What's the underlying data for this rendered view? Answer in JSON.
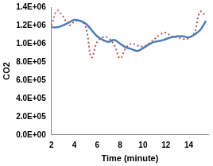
{
  "chart_data": {
    "type": "line",
    "x_label": "Time (minute)",
    "y_label": "CO2",
    "x": [
      2,
      2.5,
      3,
      3.5,
      4,
      4.5,
      5,
      5.5,
      6,
      6.5,
      7,
      7.5,
      8,
      8.5,
      9,
      9.5,
      10,
      10.5,
      11,
      11.5,
      12,
      12.5,
      13,
      13.5,
      14,
      14.5,
      15,
      15.5
    ],
    "series": [
      {
        "color": "#4a7ebb",
        "line_style": "solid",
        "values": [
          1180000,
          1180000,
          1200000,
          1230000,
          1260000,
          1250000,
          1220000,
          1150000,
          1080000,
          1040000,
          1020000,
          1040000,
          1000000,
          960000,
          940000,
          920000,
          950000,
          990000,
          1020000,
          1030000,
          1050000,
          1070000,
          1080000,
          1080000,
          1070000,
          1100000,
          1150000,
          1250000
        ]
      },
      {
        "color": "#c0504d",
        "line_style": "dotted",
        "values": [
          1200000,
          1360000,
          1300000,
          1200000,
          1240000,
          1250000,
          1180000,
          850000,
          1020000,
          1070000,
          1060000,
          980000,
          840000,
          950000,
          1000000,
          980000,
          970000,
          1000000,
          1050000,
          1100000,
          1120000,
          1080000,
          1070000,
          1050000,
          1060000,
          1120000,
          1350000,
          1300000
        ]
      }
    ],
    "xlim": [
      2,
      15.7
    ],
    "xticks": [
      2,
      4,
      6,
      8,
      10,
      12,
      14
    ],
    "ylim": [
      0,
      1400000
    ],
    "yticks": [
      {
        "value": 0,
        "label": "0.0E+00"
      },
      {
        "value": 200000,
        "label": "2.0E+05"
      },
      {
        "value": 400000,
        "label": "4.0E+05"
      },
      {
        "value": 600000,
        "label": "6.0E+05"
      },
      {
        "value": 800000,
        "label": "8.0E+05"
      },
      {
        "value": 1000000,
        "label": "1.0E+06"
      },
      {
        "value": 1200000,
        "label": "1.2E+06"
      },
      {
        "value": 1400000,
        "label": "1.4E+06"
      }
    ],
    "grid": false
  }
}
